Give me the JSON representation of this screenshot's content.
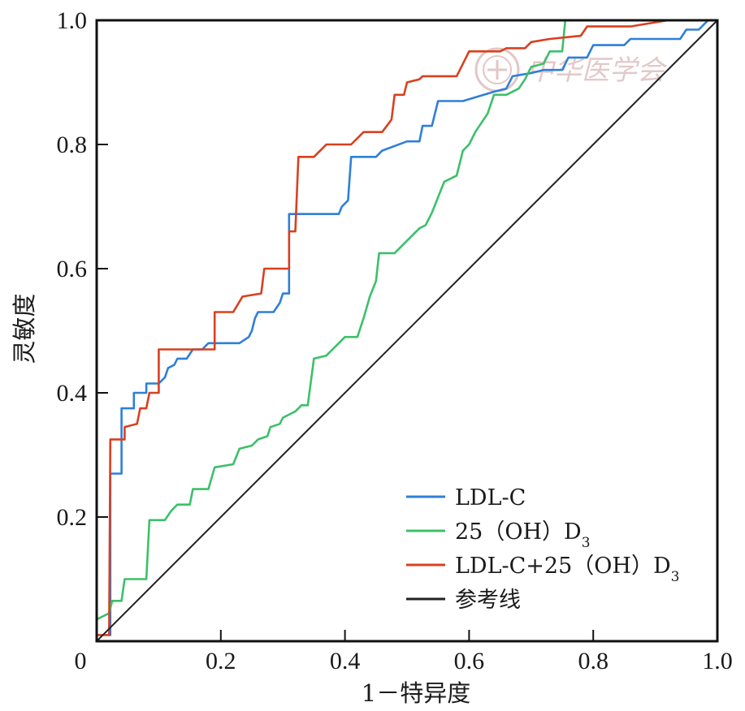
{
  "colors": {
    "ldl": "#2f7fd8",
    "oh": "#3cc06a",
    "combined": "#d9401f",
    "reference": "#222222",
    "watermark": "#e6cccc"
  },
  "watermark": {
    "text": "中华医学会",
    "icon": "medical-association-seal-icon"
  },
  "chart_data": {
    "type": "line",
    "title": "",
    "xlabel": "1－特异度",
    "ylabel": "灵敏度",
    "xlim": [
      0,
      1
    ],
    "ylim": [
      0,
      1
    ],
    "x_ticks": [
      "0",
      "0.2",
      "0.4",
      "0.6",
      "0.8",
      "1.0"
    ],
    "y_ticks": [
      "0.2",
      "0.4",
      "0.6",
      "0.8",
      "1.0"
    ],
    "grid": false,
    "legend_position": "bottom-right",
    "series": [
      {
        "name": "LDL-C",
        "color": "#2f7fd8",
        "points": [
          [
            0.02,
            0.01
          ],
          [
            0.022,
            0.01
          ],
          [
            0.022,
            0.27
          ],
          [
            0.04,
            0.27
          ],
          [
            0.04,
            0.375
          ],
          [
            0.06,
            0.375
          ],
          [
            0.06,
            0.4
          ],
          [
            0.08,
            0.4
          ],
          [
            0.08,
            0.415
          ],
          [
            0.1,
            0.415
          ],
          [
            0.11,
            0.425
          ],
          [
            0.115,
            0.44
          ],
          [
            0.125,
            0.445
          ],
          [
            0.13,
            0.455
          ],
          [
            0.145,
            0.455
          ],
          [
            0.155,
            0.47
          ],
          [
            0.17,
            0.47
          ],
          [
            0.18,
            0.48
          ],
          [
            0.23,
            0.48
          ],
          [
            0.245,
            0.49
          ],
          [
            0.25,
            0.5
          ],
          [
            0.255,
            0.52
          ],
          [
            0.26,
            0.53
          ],
          [
            0.285,
            0.53
          ],
          [
            0.295,
            0.545
          ],
          [
            0.3,
            0.56
          ],
          [
            0.31,
            0.56
          ],
          [
            0.31,
            0.688
          ],
          [
            0.35,
            0.688
          ],
          [
            0.39,
            0.688
          ],
          [
            0.395,
            0.7
          ],
          [
            0.405,
            0.71
          ],
          [
            0.41,
            0.78
          ],
          [
            0.45,
            0.78
          ],
          [
            0.46,
            0.79
          ],
          [
            0.5,
            0.805
          ],
          [
            0.52,
            0.805
          ],
          [
            0.525,
            0.83
          ],
          [
            0.54,
            0.83
          ],
          [
            0.55,
            0.87
          ],
          [
            0.59,
            0.87
          ],
          [
            0.64,
            0.885
          ],
          [
            0.66,
            0.89
          ],
          [
            0.67,
            0.91
          ],
          [
            0.7,
            0.915
          ],
          [
            0.72,
            0.92
          ],
          [
            0.75,
            0.92
          ],
          [
            0.76,
            0.94
          ],
          [
            0.79,
            0.94
          ],
          [
            0.8,
            0.96
          ],
          [
            0.85,
            0.96
          ],
          [
            0.86,
            0.97
          ],
          [
            0.94,
            0.97
          ],
          [
            0.95,
            0.985
          ],
          [
            0.97,
            0.985
          ],
          [
            0.985,
            1.0
          ],
          [
            1.0,
            1.0
          ]
        ]
      },
      {
        "name": "25（OH）D3",
        "color": "#3cc06a",
        "points": [
          [
            0.0,
            0.035
          ],
          [
            0.02,
            0.045
          ],
          [
            0.025,
            0.065
          ],
          [
            0.04,
            0.065
          ],
          [
            0.045,
            0.1
          ],
          [
            0.08,
            0.1
          ],
          [
            0.085,
            0.195
          ],
          [
            0.11,
            0.195
          ],
          [
            0.12,
            0.21
          ],
          [
            0.13,
            0.22
          ],
          [
            0.15,
            0.22
          ],
          [
            0.155,
            0.245
          ],
          [
            0.18,
            0.245
          ],
          [
            0.19,
            0.28
          ],
          [
            0.22,
            0.285
          ],
          [
            0.23,
            0.31
          ],
          [
            0.25,
            0.315
          ],
          [
            0.26,
            0.325
          ],
          [
            0.275,
            0.33
          ],
          [
            0.28,
            0.345
          ],
          [
            0.295,
            0.35
          ],
          [
            0.3,
            0.36
          ],
          [
            0.32,
            0.37
          ],
          [
            0.33,
            0.38
          ],
          [
            0.34,
            0.38
          ],
          [
            0.35,
            0.455
          ],
          [
            0.37,
            0.46
          ],
          [
            0.38,
            0.47
          ],
          [
            0.4,
            0.49
          ],
          [
            0.42,
            0.49
          ],
          [
            0.43,
            0.52
          ],
          [
            0.44,
            0.555
          ],
          [
            0.45,
            0.58
          ],
          [
            0.455,
            0.625
          ],
          [
            0.48,
            0.625
          ],
          [
            0.49,
            0.635
          ],
          [
            0.5,
            0.645
          ],
          [
            0.51,
            0.655
          ],
          [
            0.52,
            0.665
          ],
          [
            0.53,
            0.67
          ],
          [
            0.54,
            0.69
          ],
          [
            0.56,
            0.74
          ],
          [
            0.58,
            0.75
          ],
          [
            0.59,
            0.79
          ],
          [
            0.6,
            0.8
          ],
          [
            0.61,
            0.82
          ],
          [
            0.63,
            0.85
          ],
          [
            0.64,
            0.88
          ],
          [
            0.66,
            0.88
          ],
          [
            0.68,
            0.89
          ],
          [
            0.69,
            0.905
          ],
          [
            0.7,
            0.925
          ],
          [
            0.72,
            0.93
          ],
          [
            0.73,
            0.95
          ],
          [
            0.75,
            0.95
          ],
          [
            0.755,
            1.0
          ],
          [
            1.0,
            1.0
          ]
        ]
      },
      {
        "name": "LDL-C+25（OH）D3",
        "color": "#d9401f",
        "points": [
          [
            0.0,
            0.01
          ],
          [
            0.02,
            0.01
          ],
          [
            0.022,
            0.325
          ],
          [
            0.045,
            0.325
          ],
          [
            0.045,
            0.345
          ],
          [
            0.065,
            0.35
          ],
          [
            0.07,
            0.375
          ],
          [
            0.08,
            0.375
          ],
          [
            0.085,
            0.4
          ],
          [
            0.1,
            0.4
          ],
          [
            0.1,
            0.47
          ],
          [
            0.155,
            0.47
          ],
          [
            0.19,
            0.47
          ],
          [
            0.19,
            0.53
          ],
          [
            0.22,
            0.53
          ],
          [
            0.235,
            0.555
          ],
          [
            0.265,
            0.56
          ],
          [
            0.27,
            0.6
          ],
          [
            0.3,
            0.6
          ],
          [
            0.31,
            0.6
          ],
          [
            0.31,
            0.66
          ],
          [
            0.32,
            0.66
          ],
          [
            0.325,
            0.78
          ],
          [
            0.35,
            0.78
          ],
          [
            0.37,
            0.8
          ],
          [
            0.41,
            0.8
          ],
          [
            0.43,
            0.82
          ],
          [
            0.46,
            0.82
          ],
          [
            0.475,
            0.84
          ],
          [
            0.48,
            0.88
          ],
          [
            0.495,
            0.88
          ],
          [
            0.5,
            0.9
          ],
          [
            0.52,
            0.905
          ],
          [
            0.525,
            0.91
          ],
          [
            0.58,
            0.91
          ],
          [
            0.6,
            0.95
          ],
          [
            0.65,
            0.95
          ],
          [
            0.66,
            0.955
          ],
          [
            0.69,
            0.955
          ],
          [
            0.7,
            0.965
          ],
          [
            0.73,
            0.97
          ],
          [
            0.78,
            0.975
          ],
          [
            0.79,
            0.99
          ],
          [
            0.84,
            0.99
          ],
          [
            0.86,
            0.99
          ],
          [
            0.92,
            1.0
          ],
          [
            1.0,
            1.0
          ]
        ]
      },
      {
        "name": "参考线",
        "color": "#222222",
        "points": [
          [
            0,
            0
          ],
          [
            1,
            1
          ]
        ]
      }
    ]
  }
}
